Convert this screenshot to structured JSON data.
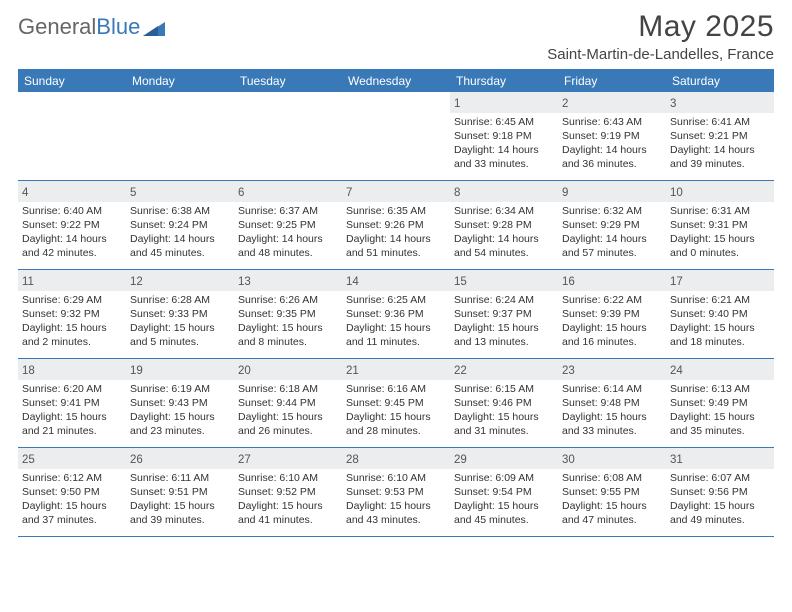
{
  "brand_part1": "General",
  "brand_part2": "Blue",
  "title": "May 2025",
  "location": "Saint-Martin-de-Landelles, France",
  "colors": {
    "accent": "#3a79b7",
    "daynum_bg": "#ebedee",
    "text": "#333333",
    "logo_gray": "#666666"
  },
  "dow": [
    "Sunday",
    "Monday",
    "Tuesday",
    "Wednesday",
    "Thursday",
    "Friday",
    "Saturday"
  ],
  "weeks": [
    [
      null,
      null,
      null,
      null,
      {
        "n": "1",
        "sr": "Sunrise: 6:45 AM",
        "ss": "Sunset: 9:18 PM",
        "d1": "Daylight: 14 hours",
        "d2": "and 33 minutes."
      },
      {
        "n": "2",
        "sr": "Sunrise: 6:43 AM",
        "ss": "Sunset: 9:19 PM",
        "d1": "Daylight: 14 hours",
        "d2": "and 36 minutes."
      },
      {
        "n": "3",
        "sr": "Sunrise: 6:41 AM",
        "ss": "Sunset: 9:21 PM",
        "d1": "Daylight: 14 hours",
        "d2": "and 39 minutes."
      }
    ],
    [
      {
        "n": "4",
        "sr": "Sunrise: 6:40 AM",
        "ss": "Sunset: 9:22 PM",
        "d1": "Daylight: 14 hours",
        "d2": "and 42 minutes."
      },
      {
        "n": "5",
        "sr": "Sunrise: 6:38 AM",
        "ss": "Sunset: 9:24 PM",
        "d1": "Daylight: 14 hours",
        "d2": "and 45 minutes."
      },
      {
        "n": "6",
        "sr": "Sunrise: 6:37 AM",
        "ss": "Sunset: 9:25 PM",
        "d1": "Daylight: 14 hours",
        "d2": "and 48 minutes."
      },
      {
        "n": "7",
        "sr": "Sunrise: 6:35 AM",
        "ss": "Sunset: 9:26 PM",
        "d1": "Daylight: 14 hours",
        "d2": "and 51 minutes."
      },
      {
        "n": "8",
        "sr": "Sunrise: 6:34 AM",
        "ss": "Sunset: 9:28 PM",
        "d1": "Daylight: 14 hours",
        "d2": "and 54 minutes."
      },
      {
        "n": "9",
        "sr": "Sunrise: 6:32 AM",
        "ss": "Sunset: 9:29 PM",
        "d1": "Daylight: 14 hours",
        "d2": "and 57 minutes."
      },
      {
        "n": "10",
        "sr": "Sunrise: 6:31 AM",
        "ss": "Sunset: 9:31 PM",
        "d1": "Daylight: 15 hours",
        "d2": "and 0 minutes."
      }
    ],
    [
      {
        "n": "11",
        "sr": "Sunrise: 6:29 AM",
        "ss": "Sunset: 9:32 PM",
        "d1": "Daylight: 15 hours",
        "d2": "and 2 minutes."
      },
      {
        "n": "12",
        "sr": "Sunrise: 6:28 AM",
        "ss": "Sunset: 9:33 PM",
        "d1": "Daylight: 15 hours",
        "d2": "and 5 minutes."
      },
      {
        "n": "13",
        "sr": "Sunrise: 6:26 AM",
        "ss": "Sunset: 9:35 PM",
        "d1": "Daylight: 15 hours",
        "d2": "and 8 minutes."
      },
      {
        "n": "14",
        "sr": "Sunrise: 6:25 AM",
        "ss": "Sunset: 9:36 PM",
        "d1": "Daylight: 15 hours",
        "d2": "and 11 minutes."
      },
      {
        "n": "15",
        "sr": "Sunrise: 6:24 AM",
        "ss": "Sunset: 9:37 PM",
        "d1": "Daylight: 15 hours",
        "d2": "and 13 minutes."
      },
      {
        "n": "16",
        "sr": "Sunrise: 6:22 AM",
        "ss": "Sunset: 9:39 PM",
        "d1": "Daylight: 15 hours",
        "d2": "and 16 minutes."
      },
      {
        "n": "17",
        "sr": "Sunrise: 6:21 AM",
        "ss": "Sunset: 9:40 PM",
        "d1": "Daylight: 15 hours",
        "d2": "and 18 minutes."
      }
    ],
    [
      {
        "n": "18",
        "sr": "Sunrise: 6:20 AM",
        "ss": "Sunset: 9:41 PM",
        "d1": "Daylight: 15 hours",
        "d2": "and 21 minutes."
      },
      {
        "n": "19",
        "sr": "Sunrise: 6:19 AM",
        "ss": "Sunset: 9:43 PM",
        "d1": "Daylight: 15 hours",
        "d2": "and 23 minutes."
      },
      {
        "n": "20",
        "sr": "Sunrise: 6:18 AM",
        "ss": "Sunset: 9:44 PM",
        "d1": "Daylight: 15 hours",
        "d2": "and 26 minutes."
      },
      {
        "n": "21",
        "sr": "Sunrise: 6:16 AM",
        "ss": "Sunset: 9:45 PM",
        "d1": "Daylight: 15 hours",
        "d2": "and 28 minutes."
      },
      {
        "n": "22",
        "sr": "Sunrise: 6:15 AM",
        "ss": "Sunset: 9:46 PM",
        "d1": "Daylight: 15 hours",
        "d2": "and 31 minutes."
      },
      {
        "n": "23",
        "sr": "Sunrise: 6:14 AM",
        "ss": "Sunset: 9:48 PM",
        "d1": "Daylight: 15 hours",
        "d2": "and 33 minutes."
      },
      {
        "n": "24",
        "sr": "Sunrise: 6:13 AM",
        "ss": "Sunset: 9:49 PM",
        "d1": "Daylight: 15 hours",
        "d2": "and 35 minutes."
      }
    ],
    [
      {
        "n": "25",
        "sr": "Sunrise: 6:12 AM",
        "ss": "Sunset: 9:50 PM",
        "d1": "Daylight: 15 hours",
        "d2": "and 37 minutes."
      },
      {
        "n": "26",
        "sr": "Sunrise: 6:11 AM",
        "ss": "Sunset: 9:51 PM",
        "d1": "Daylight: 15 hours",
        "d2": "and 39 minutes."
      },
      {
        "n": "27",
        "sr": "Sunrise: 6:10 AM",
        "ss": "Sunset: 9:52 PM",
        "d1": "Daylight: 15 hours",
        "d2": "and 41 minutes."
      },
      {
        "n": "28",
        "sr": "Sunrise: 6:10 AM",
        "ss": "Sunset: 9:53 PM",
        "d1": "Daylight: 15 hours",
        "d2": "and 43 minutes."
      },
      {
        "n": "29",
        "sr": "Sunrise: 6:09 AM",
        "ss": "Sunset: 9:54 PM",
        "d1": "Daylight: 15 hours",
        "d2": "and 45 minutes."
      },
      {
        "n": "30",
        "sr": "Sunrise: 6:08 AM",
        "ss": "Sunset: 9:55 PM",
        "d1": "Daylight: 15 hours",
        "d2": "and 47 minutes."
      },
      {
        "n": "31",
        "sr": "Sunrise: 6:07 AM",
        "ss": "Sunset: 9:56 PM",
        "d1": "Daylight: 15 hours",
        "d2": "and 49 minutes."
      }
    ]
  ]
}
